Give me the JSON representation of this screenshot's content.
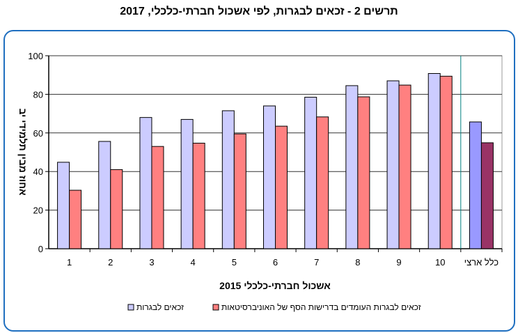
{
  "chart_data": {
    "type": "bar",
    "title": "תרשים 2 - זכאים לבגרות, לפי אשכול חברתי-כלכלי, 2017",
    "xlabel": "אשכול חברתי-כלכלי 2015",
    "ylabel": "אחוז מבין תלמידי יב",
    "categories": [
      "1",
      "2",
      "3",
      "4",
      "5",
      "6",
      "7",
      "8",
      "9",
      "10",
      "כלל ארצי"
    ],
    "ylim": [
      0,
      100
    ],
    "yticks": [
      0,
      20,
      40,
      60,
      80,
      100
    ],
    "grid": true,
    "legend_position": "bottom",
    "series": [
      {
        "name": "זכאים לבגרות",
        "color": "#ccccff",
        "national_color": "#9999ff",
        "values": [
          44.8,
          55.6,
          68,
          67,
          71.5,
          74,
          78.5,
          84.5,
          87,
          90.8,
          65.7
        ]
      },
      {
        "name": "זכאים לבגרות העומדים בדרישות הסף של האוניברסיטאות",
        "color": "#ff8080",
        "national_color": "#993366",
        "values": [
          30.3,
          41,
          53,
          54.7,
          59.5,
          63.5,
          68.3,
          78.7,
          84.8,
          89.4,
          54.9
        ]
      }
    ]
  }
}
